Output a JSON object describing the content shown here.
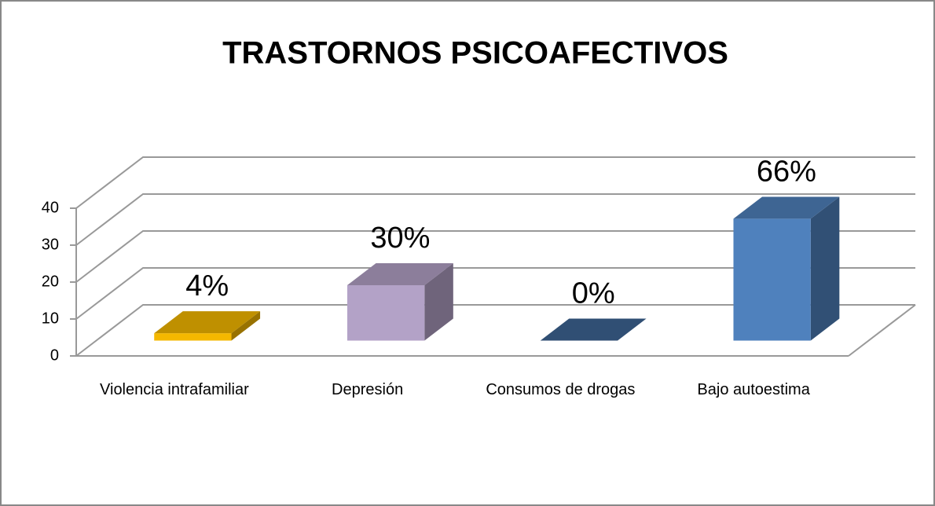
{
  "chart_data": {
    "type": "bar3d",
    "title": "TRASTORNOS PSICOAFECTIVOS",
    "categories": [
      "Violencia intrafamiliar",
      "Depresión",
      "Consumos de drogas",
      "Bajo autoestima"
    ],
    "values": [
      2,
      15,
      0,
      33
    ],
    "value_labels": [
      "4%",
      "30%",
      "0%",
      "66%"
    ],
    "colors": [
      "#f5b800",
      "#b3a2c7",
      "#3d6595",
      "#4f81bd"
    ],
    "ylim": [
      0,
      40
    ],
    "yticks": [
      0,
      10,
      20,
      30,
      40
    ],
    "grid": true
  }
}
